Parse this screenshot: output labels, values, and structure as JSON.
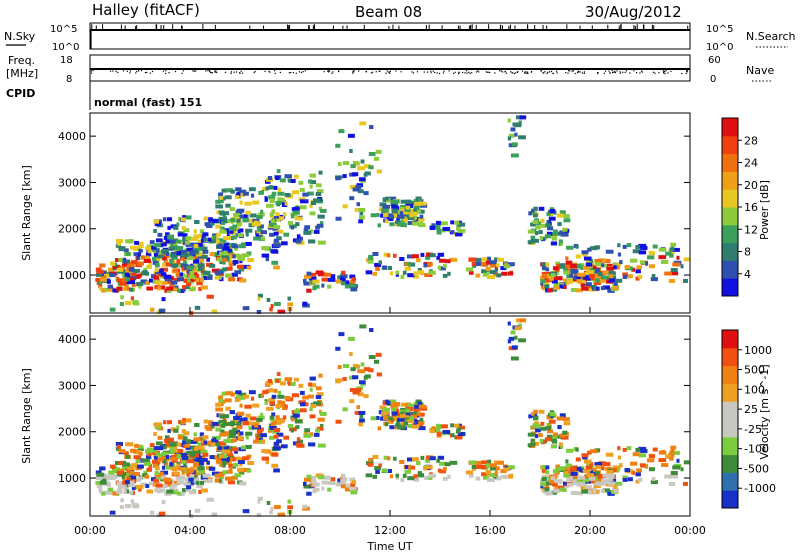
{
  "header": {
    "station": "Halley (fitACF)",
    "beam": "Beam 08",
    "date": "30/Aug/2012"
  },
  "status_panel": {
    "nsky_label": "N.Sky",
    "nsearch_label": "N.Search",
    "nsky_ticks": [
      "10^5",
      "10^0"
    ],
    "nsearch_ticks": [
      "10^5",
      "10^0"
    ],
    "freq_label_1": "Freq.",
    "freq_label_2": "[MHz]",
    "freq_ticks": [
      "18",
      "8"
    ],
    "nave_label": "Nave",
    "nave_ticks": [
      "60",
      "0"
    ],
    "cpid_label": "CPID",
    "cpid_value": "normal (fast) 151"
  },
  "chart_data": [
    {
      "type": "heatmap",
      "name": "power",
      "ylabel": "Slant Range [km]",
      "yticks": [
        "4000",
        "3000",
        "2000",
        "1000"
      ],
      "yvalues": [
        4000,
        3000,
        2000,
        1000
      ],
      "ylim": [
        180,
        4500
      ],
      "colorbar_label": "Power [dB]",
      "colorbar_ticks": [
        "28",
        "24",
        "20",
        "16",
        "12",
        "8",
        "4"
      ],
      "colorbar_colors": [
        "#1010e0",
        "#3050b0",
        "#2e7d6e",
        "#3aa05a",
        "#8ccc3c",
        "#e8c820",
        "#f0a018",
        "#f07010",
        "#f04010",
        "#e01010"
      ]
    },
    {
      "type": "heatmap",
      "name": "velocity",
      "ylabel": "Slant Range [km]",
      "yticks": [
        "4000",
        "3000",
        "2000",
        "1000"
      ],
      "yvalues": [
        4000,
        3000,
        2000,
        1000
      ],
      "ylim": [
        180,
        4500
      ],
      "colorbar_label": "Velocity [m s^-1]",
      "colorbar_ticks": [
        "1000",
        "500",
        "100",
        "25",
        "-25",
        "-100",
        "-500",
        "-1000"
      ],
      "colorbar_colors": [
        "#1830c8",
        "#2f6fb0",
        "#3c8c3c",
        "#7ccc40",
        "#c8c8c0",
        "#c8c8c0",
        "#f0a020",
        "#f08010",
        "#f05010",
        "#e01010"
      ]
    }
  ],
  "xaxis": {
    "label": "Time UT",
    "ticks": [
      "00:00",
      "04:00",
      "08:00",
      "12:00",
      "16:00",
      "20:00",
      "00:00"
    ],
    "hours": [
      0,
      4,
      8,
      12,
      16,
      20,
      24
    ]
  }
}
